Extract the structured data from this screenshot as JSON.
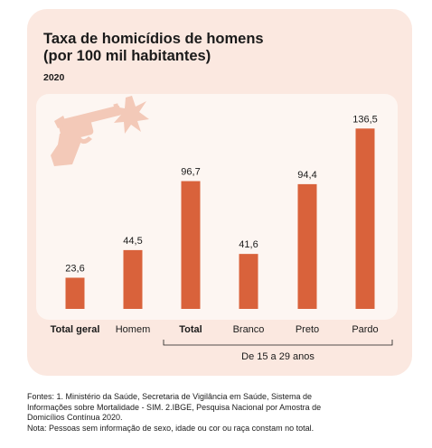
{
  "card": {
    "title_line1": "Taxa de homicídios de homens",
    "title_line2": "(por 100 mil habitantes)",
    "year": "2020"
  },
  "chart_data": {
    "type": "bar",
    "title": "Taxa de homicídios de homens (por 100 mil habitantes)",
    "subtitle": "2020",
    "categories": [
      "Total geral",
      "Homem",
      "Total",
      "Branco",
      "Preto",
      "Pardo"
    ],
    "values": [
      23.6,
      44.5,
      96.7,
      41.6,
      94.4,
      136.5
    ],
    "value_labels": [
      "23,6",
      "44,5",
      "96,7",
      "41,6",
      "94,4",
      "136,5"
    ],
    "bold_categories": [
      "Total geral",
      "Total"
    ],
    "group_label": "De 15 a 29 anos",
    "group_categories": [
      "Total",
      "Branco",
      "Preto",
      "Pardo"
    ],
    "bar_color": "#d9623b",
    "grid": false,
    "legend": "none"
  },
  "icons": {
    "decoration": "revolver-firing-icon"
  },
  "colors": {
    "card_bg": "#fbe8e0",
    "plot_bg": "#fdf6f2",
    "bar": "#d9623b",
    "icon": "#f3c9b8"
  },
  "footer": {
    "line1": "Fontes: 1. Ministério da Saúde, Secretaria de Vigilância em Saúde, Sistema de",
    "line2": "Informações sobre Mortalidade - SIM. 2.IBGE, Pesquisa Nacional por Amostra de",
    "line3": "Domicílios Contínua 2020.",
    "line4": "Nota: Pessoas sem informação de sexo, idade ou cor ou raça constam no total."
  }
}
